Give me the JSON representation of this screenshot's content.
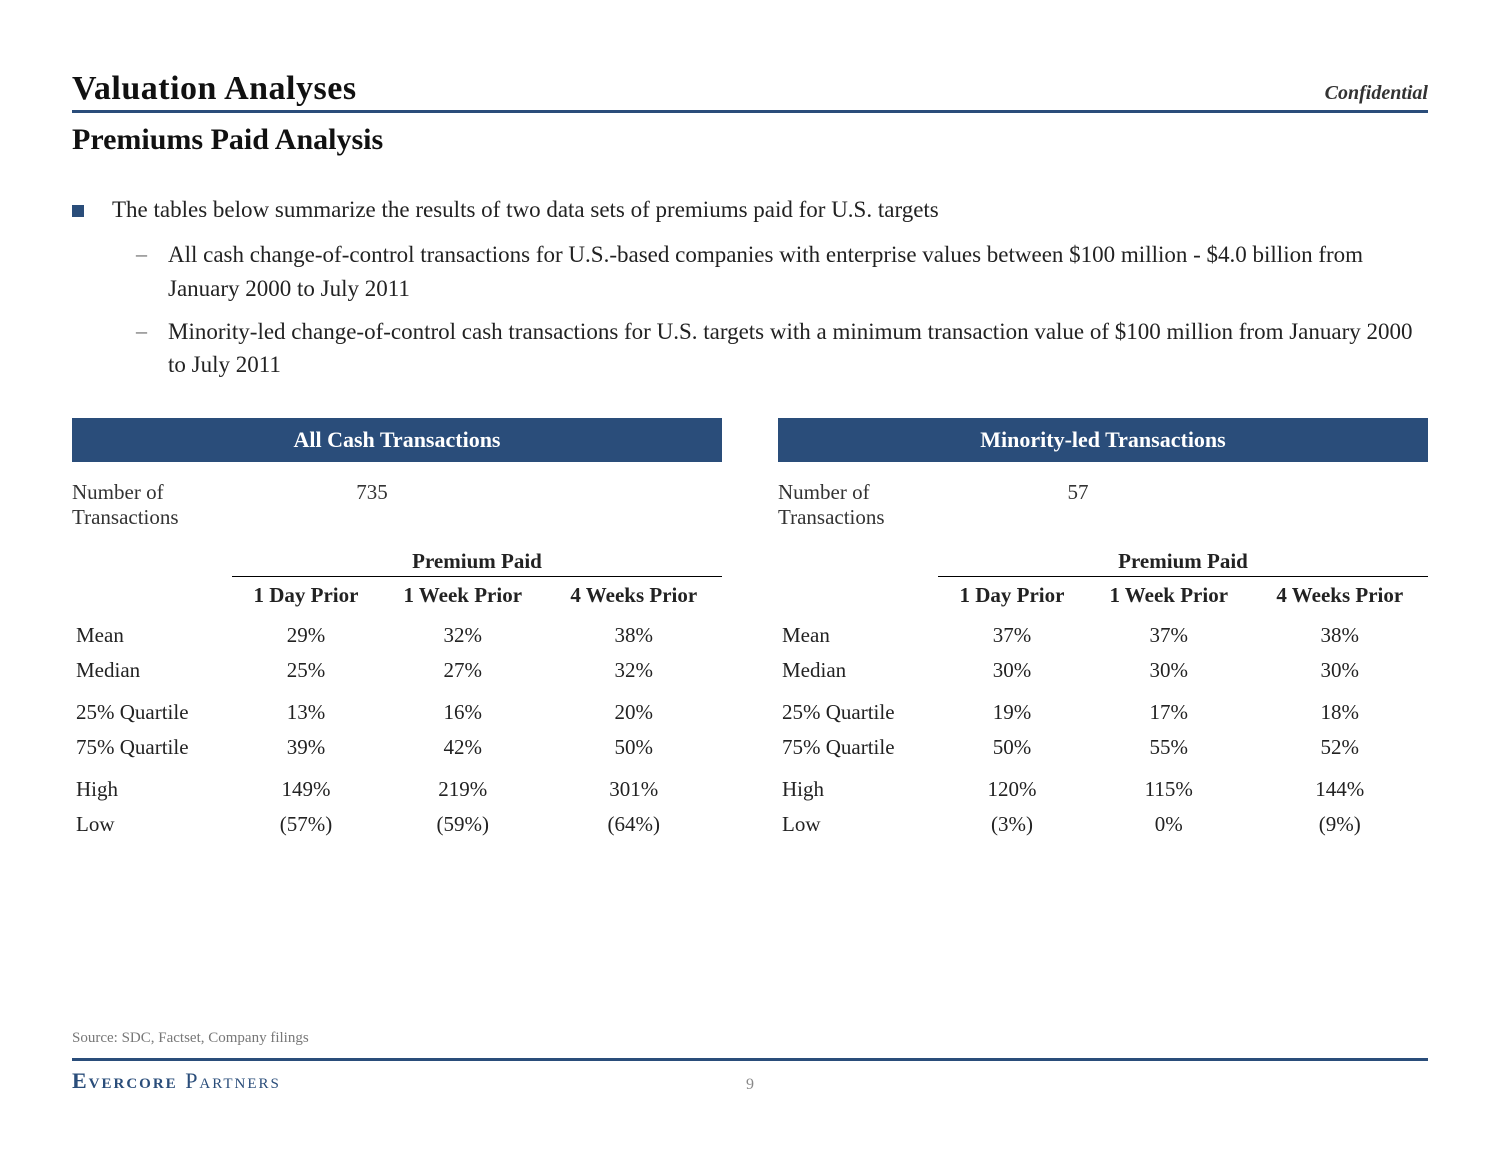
{
  "header": {
    "section_title": "Valuation Analyses",
    "confidential": "Confidential",
    "subtitle": "Premiums Paid Analysis"
  },
  "bullets": {
    "main": "The tables below summarize the results of two data sets of premiums paid for U.S. targets",
    "sub1": "All cash change-of-control transactions for U.S.-based companies with enterprise values between $100 million - $4.0 billion from January 2000 to July 2011",
    "sub2": "Minority-led change-of-control cash transactions for U.S. targets with a minimum transaction value of $100 million from January 2000 to July 2011"
  },
  "labels": {
    "num_trans": "Number of Transactions",
    "premium_paid": "Premium Paid",
    "col_day": "1 Day Prior",
    "col_week": "1 Week Prior",
    "col_4weeks": "4 Weeks Prior",
    "mean": "Mean",
    "median": "Median",
    "q25": "25% Quartile",
    "q75": "75% Quartile",
    "high": "High",
    "low": "Low"
  },
  "left": {
    "title": "All Cash Transactions",
    "num_trans": "735",
    "rows": {
      "mean": {
        "d": "29%",
        "w": "32%",
        "w4": "38%"
      },
      "median": {
        "d": "25%",
        "w": "27%",
        "w4": "32%"
      },
      "q25": {
        "d": "13%",
        "w": "16%",
        "w4": "20%"
      },
      "q75": {
        "d": "39%",
        "w": "42%",
        "w4": "50%"
      },
      "high": {
        "d": "149%",
        "w": "219%",
        "w4": "301%"
      },
      "low": {
        "d": "(57%)",
        "w": "(59%)",
        "w4": "(64%)"
      }
    }
  },
  "right": {
    "title": "Minority-led Transactions",
    "num_trans": "57",
    "rows": {
      "mean": {
        "d": "37%",
        "w": "37%",
        "w4": "38%"
      },
      "median": {
        "d": "30%",
        "w": "30%",
        "w4": "30%"
      },
      "q25": {
        "d": "19%",
        "w": "17%",
        "w4": "18%"
      },
      "q75": {
        "d": "50%",
        "w": "55%",
        "w4": "52%"
      },
      "high": {
        "d": "120%",
        "w": "115%",
        "w4": "144%"
      },
      "low": {
        "d": "(3%)",
        "w": "0%",
        "w4": "(9%)"
      }
    }
  },
  "footer": {
    "source": "Source: SDC, Factset, Company filings",
    "brand_strong": "Evercore",
    "brand_rest": " Partners",
    "page_number": "9"
  },
  "colors": {
    "accent": "#2a4d7a",
    "text": "#222222",
    "muted": "#777777",
    "background": "#ffffff"
  }
}
